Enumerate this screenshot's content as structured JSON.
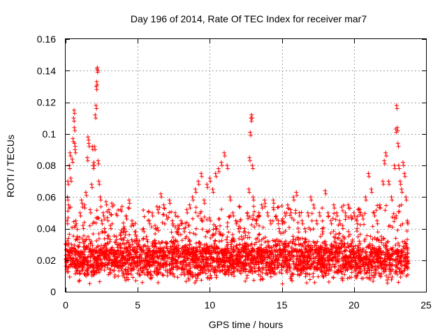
{
  "chart_data": {
    "type": "scatter",
    "title": "Day 196 of 2014, Rate Of TEC Index for receiver mar7",
    "xlabel": "GPS time / hours",
    "ylabel": "ROTI / TECUs",
    "xlim": [
      0,
      25
    ],
    "ylim": [
      0,
      0.16
    ],
    "x_ticks": [
      "0",
      "5",
      "10",
      "15",
      "20",
      "25"
    ],
    "y_ticks": [
      "0",
      "0.02",
      "0.04",
      "0.06",
      "0.08",
      "0.1",
      "0.12",
      "0.14",
      "0.16"
    ],
    "x_tick_values": [
      0,
      5,
      10,
      15,
      20,
      25
    ],
    "y_tick_values": [
      0,
      0.02,
      0.04,
      0.06,
      0.08,
      0.1,
      0.12,
      0.14,
      0.16
    ],
    "grid": true,
    "marker": "+",
    "color": "#ff0000",
    "series": [
      {
        "name": "ROTI",
        "points": [
          [
            0.05,
            0.021
          ],
          [
            0.1,
            0.045
          ],
          [
            0.12,
            0.06
          ],
          [
            0.15,
            0.07
          ],
          [
            0.2,
            0.055
          ],
          [
            0.25,
            0.08
          ],
          [
            0.3,
            0.088
          ],
          [
            0.35,
            0.072
          ],
          [
            0.4,
            0.03
          ],
          [
            0.45,
            0.084
          ],
          [
            0.5,
            0.097
          ],
          [
            0.55,
            0.11
          ],
          [
            0.58,
            0.115
          ],
          [
            0.6,
            0.104
          ],
          [
            0.62,
            0.094
          ],
          [
            0.65,
            0.09
          ],
          [
            0.7,
            0.045
          ],
          [
            0.8,
            0.035
          ],
          [
            0.9,
            0.025
          ],
          [
            1.0,
            0.05
          ],
          [
            1.1,
            0.058
          ],
          [
            1.2,
            0.042
          ],
          [
            1.3,
            0.055
          ],
          [
            1.4,
            0.063
          ],
          [
            1.5,
            0.085
          ],
          [
            1.55,
            0.098
          ],
          [
            1.6,
            0.094
          ],
          [
            1.7,
            0.052
          ],
          [
            1.8,
            0.068
          ],
          [
            1.85,
            0.092
          ],
          [
            1.9,
            0.08
          ],
          [
            1.95,
            0.082
          ],
          [
            2.0,
            0.092
          ],
          [
            2.05,
            0.112
          ],
          [
            2.1,
            0.118
          ],
          [
            2.12,
            0.13
          ],
          [
            2.15,
            0.133
          ],
          [
            2.18,
            0.141
          ],
          [
            2.2,
            0.142
          ],
          [
            2.25,
            0.083
          ],
          [
            2.3,
            0.07
          ],
          [
            2.4,
            0.06
          ],
          [
            2.5,
            0.045
          ],
          [
            2.6,
            0.05
          ],
          [
            2.7,
            0.04
          ],
          [
            2.8,
            0.057
          ],
          [
            2.9,
            0.047
          ],
          [
            3.0,
            0.052
          ],
          [
            3.1,
            0.042
          ],
          [
            3.2,
            0.056
          ],
          [
            3.5,
            0.035
          ],
          [
            3.8,
            0.03
          ],
          [
            4.0,
            0.04
          ],
          [
            4.2,
            0.048
          ],
          [
            4.4,
            0.058
          ],
          [
            4.6,
            0.045
          ],
          [
            4.8,
            0.038
          ],
          [
            5.0,
            0.032
          ],
          [
            5.2,
            0.028
          ],
          [
            5.4,
            0.04
          ],
          [
            5.6,
            0.035
          ],
          [
            5.8,
            0.045
          ],
          [
            6.0,
            0.05
          ],
          [
            6.2,
            0.042
          ],
          [
            6.4,
            0.052
          ],
          [
            6.6,
            0.062
          ],
          [
            6.8,
            0.055
          ],
          [
            7.0,
            0.048
          ],
          [
            7.2,
            0.058
          ],
          [
            7.4,
            0.045
          ],
          [
            7.6,
            0.05
          ],
          [
            7.8,
            0.042
          ],
          [
            8.0,
            0.045
          ],
          [
            8.2,
            0.04
          ],
          [
            8.4,
            0.052
          ],
          [
            8.6,
            0.055
          ],
          [
            8.8,
            0.06
          ],
          [
            9.0,
            0.065
          ],
          [
            9.2,
            0.07
          ],
          [
            9.4,
            0.075
          ],
          [
            9.6,
            0.058
          ],
          [
            9.8,
            0.068
          ],
          [
            10.0,
            0.072
          ],
          [
            10.2,
            0.065
          ],
          [
            10.4,
            0.075
          ],
          [
            10.6,
            0.078
          ],
          [
            10.8,
            0.082
          ],
          [
            11.0,
            0.088
          ],
          [
            11.2,
            0.08
          ],
          [
            11.4,
            0.06
          ],
          [
            11.6,
            0.05
          ],
          [
            11.8,
            0.045
          ],
          [
            12.0,
            0.04
          ],
          [
            12.2,
            0.035
          ],
          [
            12.4,
            0.04
          ],
          [
            12.6,
            0.05
          ],
          [
            12.7,
            0.065
          ],
          [
            12.75,
            0.085
          ],
          [
            12.8,
            0.101
          ],
          [
            12.85,
            0.11
          ],
          [
            12.9,
            0.112
          ],
          [
            12.95,
            0.08
          ],
          [
            13.0,
            0.06
          ],
          [
            13.2,
            0.045
          ],
          [
            13.4,
            0.05
          ],
          [
            13.6,
            0.055
          ],
          [
            13.8,
            0.058
          ],
          [
            14.0,
            0.05
          ],
          [
            14.2,
            0.045
          ],
          [
            14.4,
            0.058
          ],
          [
            14.6,
            0.048
          ],
          [
            14.8,
            0.04
          ],
          [
            15.0,
            0.045
          ],
          [
            15.2,
            0.05
          ],
          [
            15.4,
            0.055
          ],
          [
            15.6,
            0.052
          ],
          [
            15.8,
            0.06
          ],
          [
            16.0,
            0.063
          ],
          [
            16.2,
            0.05
          ],
          [
            16.4,
            0.045
          ],
          [
            16.6,
            0.04
          ],
          [
            16.8,
            0.05
          ],
          [
            17.0,
            0.06
          ],
          [
            17.2,
            0.055
          ],
          [
            17.4,
            0.045
          ],
          [
            17.6,
            0.05
          ],
          [
            17.8,
            0.04
          ],
          [
            18.0,
            0.064
          ],
          [
            18.2,
            0.05
          ],
          [
            18.4,
            0.045
          ],
          [
            18.6,
            0.055
          ],
          [
            18.8,
            0.05
          ],
          [
            19.0,
            0.045
          ],
          [
            19.2,
            0.042
          ],
          [
            19.4,
            0.05
          ],
          [
            19.6,
            0.055
          ],
          [
            19.8,
            0.048
          ],
          [
            20.0,
            0.05
          ],
          [
            20.2,
            0.045
          ],
          [
            20.4,
            0.052
          ],
          [
            20.6,
            0.048
          ],
          [
            20.8,
            0.06
          ],
          [
            21.0,
            0.075
          ],
          [
            21.2,
            0.065
          ],
          [
            21.4,
            0.05
          ],
          [
            21.6,
            0.045
          ],
          [
            21.8,
            0.055
          ],
          [
            22.0,
            0.07
          ],
          [
            22.1,
            0.083
          ],
          [
            22.2,
            0.088
          ],
          [
            22.4,
            0.07
          ],
          [
            22.6,
            0.06
          ],
          [
            22.8,
            0.08
          ],
          [
            22.9,
            0.103
          ],
          [
            22.95,
            0.118
          ],
          [
            23.0,
            0.104
          ],
          [
            23.05,
            0.094
          ],
          [
            23.1,
            0.08
          ],
          [
            23.2,
            0.07
          ],
          [
            23.3,
            0.065
          ],
          [
            23.4,
            0.082
          ],
          [
            23.5,
            0.075
          ],
          [
            23.6,
            0.06
          ],
          [
            23.7,
            0.045
          ],
          [
            23.75,
            0.02
          ]
        ]
      }
    ],
    "background_band": {
      "description": "dense cluster of points forming the baseline ROTI level",
      "x_range": [
        0,
        23.75
      ],
      "y_range": [
        0.005,
        0.035
      ],
      "typical": 0.02
    }
  }
}
